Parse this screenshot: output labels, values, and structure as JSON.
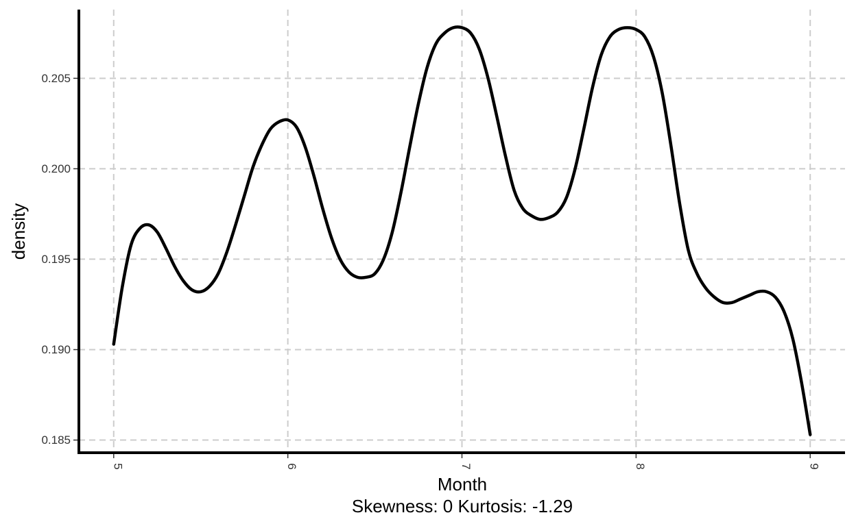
{
  "chart_data": {
    "type": "line",
    "title": "",
    "xlabel": "Month",
    "caption": "Skewness: 0 Kurtosis: -1.29",
    "ylabel": "density",
    "xlim": [
      4.8,
      9.2
    ],
    "ylim": [
      0.1843,
      0.2088
    ],
    "x_ticks": [
      5,
      6,
      7,
      8,
      9
    ],
    "y_ticks": [
      0.185,
      0.19,
      0.195,
      0.2,
      0.205
    ],
    "y_tick_labels": [
      "0.185",
      "0.190",
      "0.195",
      "0.200",
      "0.205"
    ],
    "x_tick_labels": [
      "5",
      "6",
      "7",
      "8",
      "9"
    ],
    "grid": true,
    "grid_style": "dashed",
    "line_color": "#000000",
    "grid_color": "#cccccc",
    "series": [
      {
        "points": [
          [
            5.0,
            0.1903
          ],
          [
            5.05,
            0.1935
          ],
          [
            5.1,
            0.1958
          ],
          [
            5.15,
            0.1967
          ],
          [
            5.2,
            0.1969
          ],
          [
            5.25,
            0.1965
          ],
          [
            5.3,
            0.1956
          ],
          [
            5.35,
            0.1946
          ],
          [
            5.4,
            0.1938
          ],
          [
            5.45,
            0.1933
          ],
          [
            5.5,
            0.1932
          ],
          [
            5.55,
            0.1935
          ],
          [
            5.6,
            0.1942
          ],
          [
            5.65,
            0.1954
          ],
          [
            5.7,
            0.1969
          ],
          [
            5.75,
            0.1985
          ],
          [
            5.8,
            0.2001
          ],
          [
            5.85,
            0.2013
          ],
          [
            5.9,
            0.2022
          ],
          [
            5.95,
            0.2026
          ],
          [
            6.0,
            0.2027
          ],
          [
            6.05,
            0.2023
          ],
          [
            6.1,
            0.2012
          ],
          [
            6.15,
            0.1996
          ],
          [
            6.2,
            0.1978
          ],
          [
            6.25,
            0.1962
          ],
          [
            6.3,
            0.195
          ],
          [
            6.35,
            0.1943
          ],
          [
            6.4,
            0.194
          ],
          [
            6.45,
            0.194
          ],
          [
            6.5,
            0.1942
          ],
          [
            6.55,
            0.195
          ],
          [
            6.6,
            0.1965
          ],
          [
            6.65,
            0.1987
          ],
          [
            6.7,
            0.2012
          ],
          [
            6.75,
            0.2036
          ],
          [
            6.8,
            0.2056
          ],
          [
            6.85,
            0.2069
          ],
          [
            6.9,
            0.2075
          ],
          [
            6.95,
            0.2078
          ],
          [
            7.0,
            0.2078
          ],
          [
            7.05,
            0.2075
          ],
          [
            7.1,
            0.2066
          ],
          [
            7.15,
            0.205
          ],
          [
            7.2,
            0.2029
          ],
          [
            7.25,
            0.2007
          ],
          [
            7.3,
            0.1988
          ],
          [
            7.35,
            0.1978
          ],
          [
            7.4,
            0.1974
          ],
          [
            7.45,
            0.1972
          ],
          [
            7.5,
            0.1973
          ],
          [
            7.55,
            0.1976
          ],
          [
            7.6,
            0.1984
          ],
          [
            7.65,
            0.2
          ],
          [
            7.7,
            0.2022
          ],
          [
            7.75,
            0.2045
          ],
          [
            7.8,
            0.2063
          ],
          [
            7.85,
            0.2073
          ],
          [
            7.9,
            0.2077
          ],
          [
            7.95,
            0.2078
          ],
          [
            8.0,
            0.2077
          ],
          [
            8.05,
            0.2073
          ],
          [
            8.1,
            0.2062
          ],
          [
            8.15,
            0.2042
          ],
          [
            8.2,
            0.2013
          ],
          [
            8.25,
            0.1981
          ],
          [
            8.3,
            0.1955
          ],
          [
            8.35,
            0.1942
          ],
          [
            8.4,
            0.1934
          ],
          [
            8.45,
            0.1929
          ],
          [
            8.5,
            0.1926
          ],
          [
            8.55,
            0.1926
          ],
          [
            8.6,
            0.1928
          ],
          [
            8.65,
            0.193
          ],
          [
            8.7,
            0.1932
          ],
          [
            8.75,
            0.1932
          ],
          [
            8.8,
            0.1929
          ],
          [
            8.85,
            0.1921
          ],
          [
            8.9,
            0.1906
          ],
          [
            8.95,
            0.1882
          ],
          [
            9.0,
            0.1853
          ]
        ]
      }
    ]
  }
}
